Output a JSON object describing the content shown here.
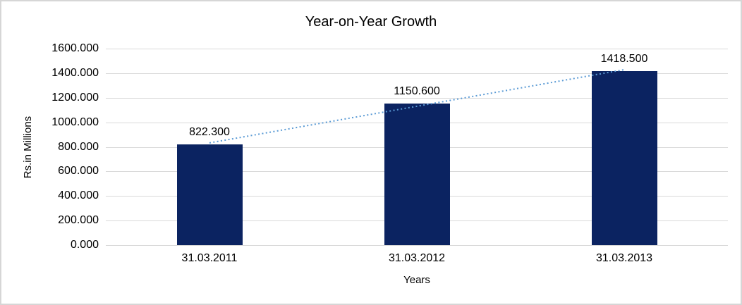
{
  "frame": {
    "background_color": "#FFFFFF",
    "border_color": "#D6D6D6"
  },
  "chart_data": {
    "type": "bar",
    "title": "Year-on-Year Growth",
    "xlabel": "Years",
    "ylabel": "Rs.in Millions",
    "categories": [
      "31.03.2011",
      "31.03.2012",
      "31.03.2013"
    ],
    "values": [
      822.3,
      1150.6,
      1418.5
    ],
    "data_labels": [
      "822.300",
      "1150.600",
      "1418.500"
    ],
    "ylim": [
      0,
      1600
    ],
    "ytick_step": 200,
    "ytick_labels": [
      "0.000",
      "200.000",
      "400.000",
      "600.000",
      "800.000",
      "1000.000",
      "1200.000",
      "1400.000",
      "1600.000"
    ],
    "grid": true,
    "legend_position": "none",
    "bar_color": "#0B2361",
    "gridline_color": "#D9D9D9",
    "label_color": "#000000",
    "trendline": {
      "type": "linear",
      "style": "dotted",
      "color": "#5B9BD5"
    }
  }
}
